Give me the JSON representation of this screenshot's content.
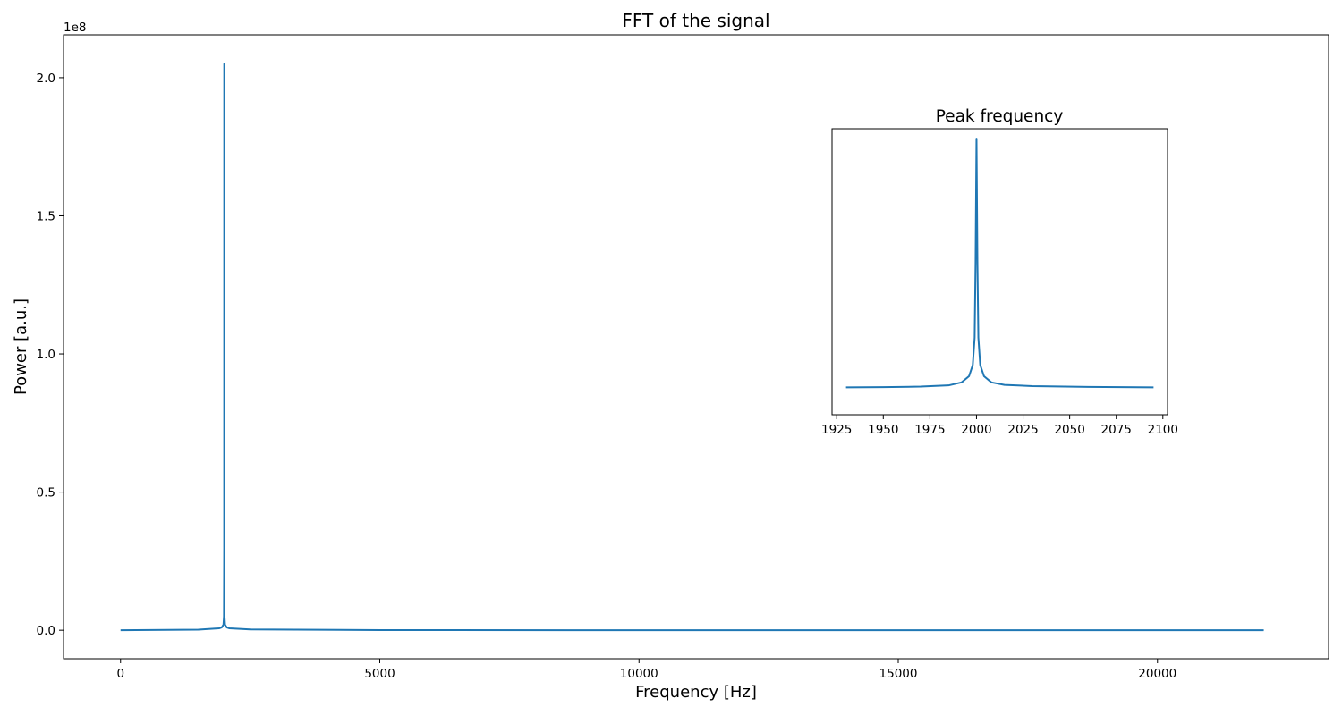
{
  "chart_data": [
    {
      "type": "line",
      "title": "FFT of the signal",
      "xlabel": "Frequency [Hz]",
      "ylabel": "Power [a.u.]",
      "y_offset_text": "1e8",
      "xlim": [
        -1100,
        23300
      ],
      "ylim": [
        -10300000.0,
        215500000.0
      ],
      "xticks": [
        0,
        5000,
        10000,
        15000,
        20000
      ],
      "xtick_labels": [
        "0",
        "5000",
        "10000",
        "15000",
        "20000"
      ],
      "yticks": [
        0,
        50000000.0,
        100000000.0,
        150000000.0,
        200000000.0
      ],
      "ytick_labels": [
        "0.0",
        "0.5",
        "1.0",
        "1.5",
        "2.0"
      ],
      "grid": false,
      "color": "#1f77b4",
      "series": [
        {
          "x": [
            0,
            1500,
            1900,
            1950,
            1985,
            1995,
            1999,
            2000,
            2001,
            2005,
            2015,
            2050,
            2100,
            2500,
            5000,
            10000,
            15000,
            20000,
            22050
          ],
          "values": [
            0,
            200000,
            700000,
            1000000,
            2000000,
            5000000,
            30000000,
            205000000,
            30000000,
            5000000,
            2000000,
            1000000,
            700000,
            300000,
            50000,
            20000,
            10000,
            5000,
            3000
          ]
        }
      ]
    },
    {
      "type": "line",
      "title": "Peak frequency",
      "xlim": [
        1922.5,
        2102.5
      ],
      "ylim": [
        -0.11,
        1.04
      ],
      "xticks": [
        1925,
        1950,
        1975,
        2000,
        2025,
        2050,
        2075,
        2100
      ],
      "xtick_labels": [
        "1925",
        "1950",
        "1975",
        "2000",
        "2025",
        "2050",
        "2075",
        "2100"
      ],
      "yticks": [],
      "grid": false,
      "color": "#1f77b4",
      "series": [
        {
          "x": [
            1930,
            1950,
            1970,
            1985,
            1992,
            1996,
            1998,
            1999,
            1999.5,
            2000,
            2000.5,
            2001,
            2002,
            2004,
            2008,
            2015,
            2030,
            2060,
            2095
          ],
          "values": [
            0,
            0.001,
            0.003,
            0.008,
            0.02,
            0.045,
            0.09,
            0.2,
            0.5,
            1.0,
            0.5,
            0.2,
            0.09,
            0.045,
            0.02,
            0.01,
            0.005,
            0.002,
            0.0
          ]
        }
      ]
    }
  ]
}
